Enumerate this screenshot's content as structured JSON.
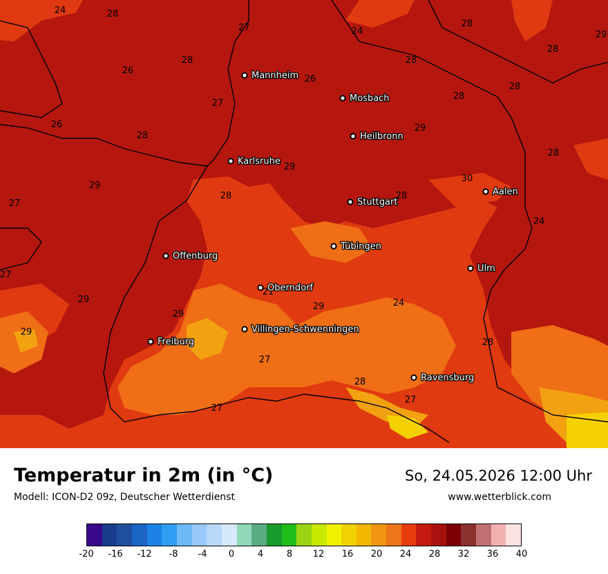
{
  "title": "Temperatur in 2m (in °C)",
  "subtitle": "Modell: ICON-D2 09z, Deutscher Wetterdienst",
  "datetime": "So, 24.05.2026 12:00 Uhr",
  "website": "www.wetterblick.com",
  "legend": {
    "ticks": [
      "-20",
      "-16",
      "-12",
      "-8",
      "-4",
      "0",
      "4",
      "8",
      "12",
      "16",
      "20",
      "24",
      "28",
      "32",
      "36",
      "40"
    ],
    "colors": [
      "#3a0a8c",
      "#1a3c8c",
      "#1f4f9c",
      "#1c64c4",
      "#1c82e6",
      "#2f9ef2",
      "#6eb9f5",
      "#96c9f7",
      "#b8d8f9",
      "#d6e8fb",
      "#90d8b8",
      "#5aaa82",
      "#179b2c",
      "#1fbc1a",
      "#9ad414",
      "#c8e800",
      "#f2f200",
      "#f0d200",
      "#f2b800",
      "#f09412",
      "#ec7618",
      "#e83c0e",
      "#c41a10",
      "#a8120e",
      "#7c0004",
      "#8c3030",
      "#c07070",
      "#f2b0b0",
      "#fde2e2"
    ]
  },
  "cities": [
    {
      "name": "Mannheim"
    },
    {
      "name": "Mosbach"
    },
    {
      "name": "Heilbronn"
    },
    {
      "name": "Karlsruhe"
    },
    {
      "name": "Stuttgart"
    },
    {
      "name": "Aalen"
    },
    {
      "name": "Tübingen"
    },
    {
      "name": "Ulm"
    },
    {
      "name": "Offenburg"
    },
    {
      "name": "Oberndorf"
    },
    {
      "name": "Villingen-Schwenningen"
    },
    {
      "name": "Freiburg"
    },
    {
      "name": "Ravensburg"
    }
  ],
  "isotherm_labels": [
    "24",
    "28",
    "27",
    "24",
    "28",
    "29",
    "28",
    "28",
    "26",
    "26",
    "28",
    "28",
    "28",
    "27",
    "29",
    "26",
    "28",
    "28",
    "29",
    "29",
    "28",
    "27",
    "28",
    "30",
    "24",
    "27",
    "29",
    "21",
    "29",
    "24",
    "29",
    "29",
    "28",
    "27",
    "28",
    "27",
    "27"
  ],
  "colors": {
    "warm_28_32": "#b5170f",
    "band_24_28": "#e03a10",
    "band_20_24": "#ef6e16",
    "band_16_20": "#f2a210",
    "band_12_16": "#f5d000",
    "band_32_36": "#c04040"
  }
}
